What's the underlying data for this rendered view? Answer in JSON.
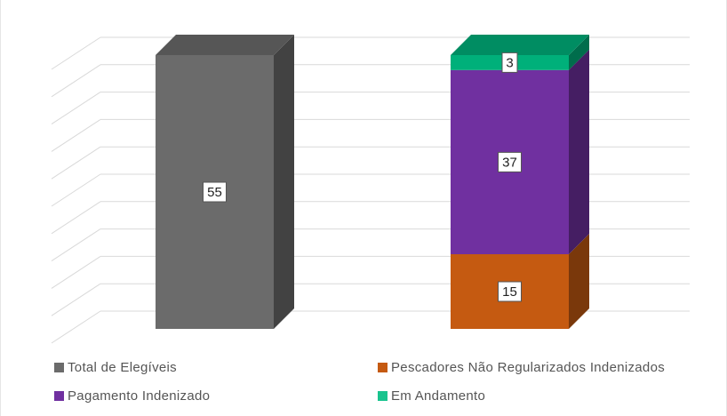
{
  "chart_data": {
    "type": "bar",
    "stacked": true,
    "three_d": true,
    "categories": [
      "",
      ""
    ],
    "series": [
      {
        "name": "Total de Elegíveis",
        "values": [
          55,
          0
        ],
        "color": "#6b6b6b"
      },
      {
        "name": "Pescadores Não Regularizados Indenizados",
        "values": [
          0,
          15
        ],
        "color": "#c55a11"
      },
      {
        "name": "Pagamento Indenizado",
        "values": [
          0,
          37
        ],
        "color": "#7030a0"
      },
      {
        "name": "Em Andamento",
        "values": [
          0,
          3
        ],
        "color": "#00b07a"
      }
    ],
    "ylim": [
      0,
      55
    ],
    "grid": true,
    "legend_position": "bottom"
  },
  "legend": [
    {
      "label": "Total de Elegíveis",
      "color": "#6b6b6b"
    },
    {
      "label": "Pescadores Não Regularizados Indenizados",
      "color": "#c55a11"
    },
    {
      "label": "Pagamento Indenizado",
      "color": "#7030a0"
    },
    {
      "label": "Em Andamento",
      "color": "#19c48e"
    }
  ]
}
